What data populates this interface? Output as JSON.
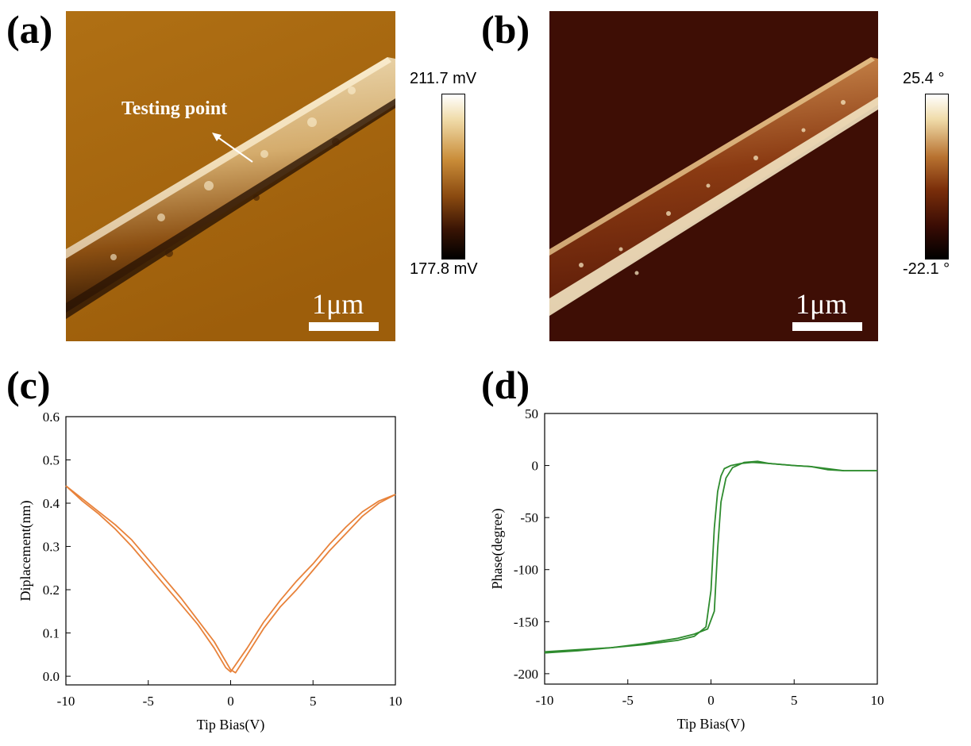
{
  "panels": {
    "a": {
      "label": "(a)",
      "annotation": "Testing point",
      "scale_bar": "1μm",
      "colorbar_max": "211.7 mV",
      "colorbar_min": "177.8 mV",
      "colors": {
        "background": "#a8660e",
        "stripe_light": "#f2e6c8",
        "stripe_dark": "#3a1c05"
      }
    },
    "b": {
      "label": "(b)",
      "scale_bar": "1μm",
      "colorbar_max": "25.4 °",
      "colorbar_min": "-22.1 °",
      "colors": {
        "background": "#3d0d05",
        "stripe_light": "#f0e2c0",
        "stripe_mid": "#7a3410"
      }
    },
    "c": {
      "label": "(c)"
    },
    "d": {
      "label": "(d)"
    }
  },
  "chart_data": [
    {
      "type": "line",
      "xlabel": "Tip Bias(V)",
      "ylabel": "Diplacement(nm)",
      "xlim": [
        -10,
        10
      ],
      "ylim": [
        -0.02,
        0.6
      ],
      "xticks": [
        -10,
        -5,
        0,
        5,
        10
      ],
      "yticks": [
        0.0,
        0.1,
        0.2,
        0.3,
        0.4,
        0.5,
        0.6
      ],
      "ytick_labels": [
        "0.0",
        "0.1",
        "0.2",
        "0.3",
        "0.4",
        "0.5",
        "0.6"
      ],
      "color": "#e8823a",
      "series": [
        {
          "x": [
            -10,
            -9,
            -8,
            -7,
            -6,
            -5,
            -4,
            -3,
            -2,
            -1,
            0,
            0.3,
            1,
            2,
            3,
            4,
            5,
            6,
            7,
            8,
            9,
            10
          ],
          "y": [
            0.44,
            0.41,
            0.38,
            0.35,
            0.315,
            0.27,
            0.225,
            0.18,
            0.13,
            0.08,
            0.015,
            0.008,
            0.05,
            0.11,
            0.16,
            0.2,
            0.245,
            0.29,
            0.33,
            0.37,
            0.4,
            0.42
          ]
        },
        {
          "x": [
            -10,
            -9,
            -8,
            -7,
            -6,
            -5,
            -4,
            -3,
            -2,
            -1,
            -0.3,
            0,
            1,
            2,
            3,
            4,
            5,
            6,
            7,
            8,
            9,
            10
          ],
          "y": [
            0.44,
            0.405,
            0.375,
            0.34,
            0.3,
            0.255,
            0.21,
            0.165,
            0.12,
            0.065,
            0.02,
            0.01,
            0.065,
            0.125,
            0.175,
            0.22,
            0.26,
            0.305,
            0.345,
            0.38,
            0.405,
            0.42
          ]
        }
      ]
    },
    {
      "type": "line",
      "xlabel": "Tip Bias(V)",
      "ylabel": "Phase(degree)",
      "xlim": [
        -10,
        10
      ],
      "ylim": [
        -210,
        50
      ],
      "xticks": [
        -10,
        -5,
        0,
        5,
        10
      ],
      "yticks": [
        -200,
        -150,
        -100,
        -50,
        0,
        50
      ],
      "color": "#2e8b2e",
      "series": [
        {
          "x": [
            -10,
            -8,
            -6,
            -4,
            -2,
            -1,
            -0.3,
            0,
            0.2,
            0.4,
            0.6,
            0.8,
            1.2,
            1.8,
            2.5,
            3.5,
            5,
            6,
            7,
            8,
            9,
            10
          ],
          "y": [
            -179,
            -177,
            -175,
            -172,
            -168,
            -164,
            -155,
            -120,
            -60,
            -25,
            -10,
            -3,
            0,
            2,
            3,
            2,
            0,
            -1,
            -3,
            -5,
            -5,
            -5
          ]
        },
        {
          "x": [
            -10,
            -8,
            -6,
            -4,
            -2,
            -1,
            -0.2,
            0.2,
            0.4,
            0.6,
            0.9,
            1.3,
            2,
            2.8,
            3.5,
            5,
            6,
            7,
            8,
            9,
            10
          ],
          "y": [
            -180,
            -178,
            -175,
            -171,
            -166,
            -162,
            -157,
            -140,
            -80,
            -35,
            -12,
            -2,
            3,
            4,
            2,
            0,
            -1,
            -4,
            -5,
            -5,
            -5
          ]
        }
      ]
    }
  ]
}
